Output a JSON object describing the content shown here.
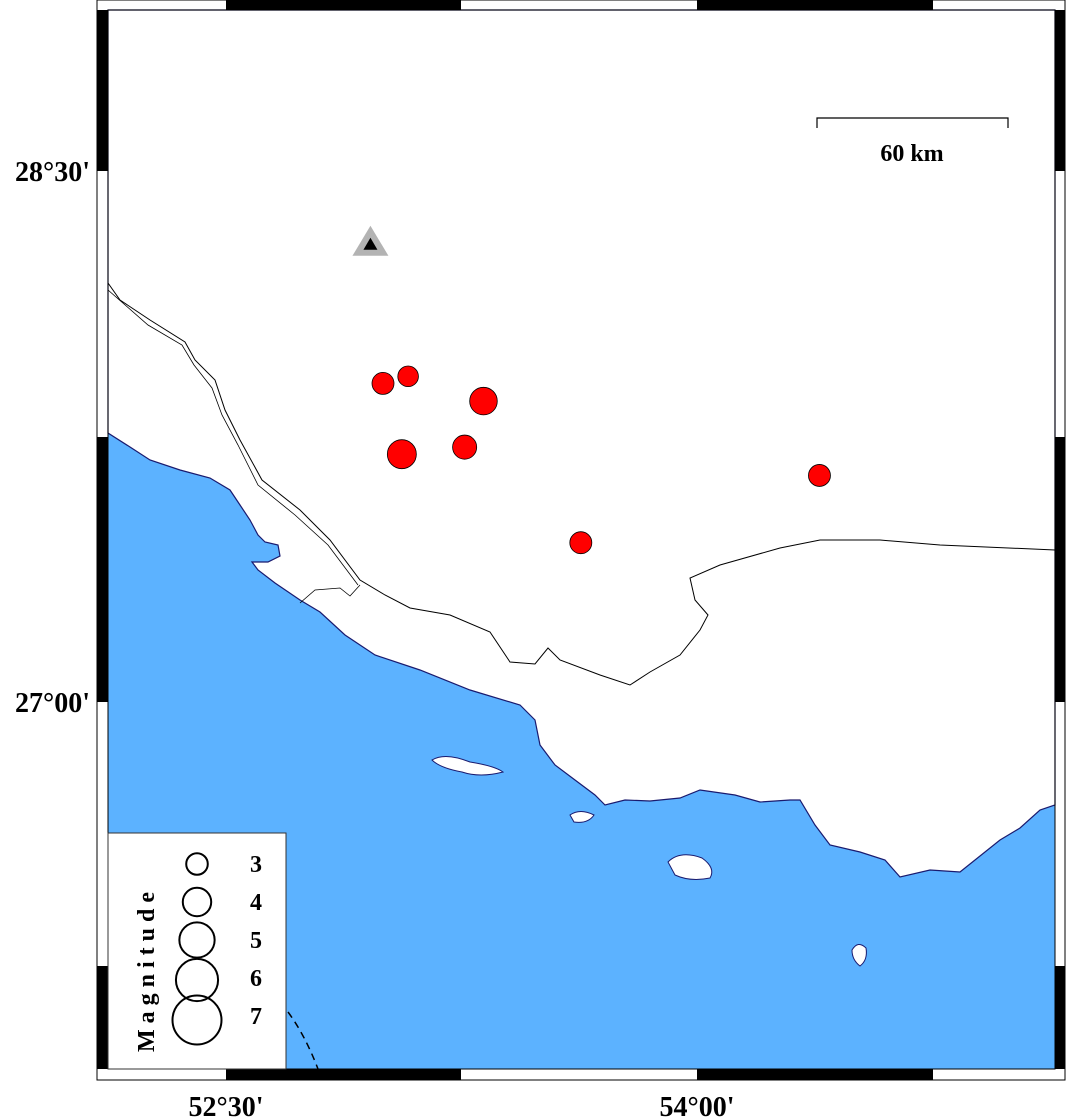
{
  "map": {
    "colors": {
      "sea": "#5cb2ff",
      "land": "#ffffff",
      "event": "#ff0000",
      "station_outer": "#b3b3b3",
      "station_inner": "#000000"
    },
    "lon_labels": [
      {
        "lon": 52.5,
        "text": "52°30'"
      },
      {
        "lon": 54.0,
        "text": "54°00'"
      }
    ],
    "lat_labels": [
      {
        "lat": 28.5,
        "text": "28°30'"
      },
      {
        "lat": 27.0,
        "text": "27°00'"
      }
    ],
    "scale_bar": {
      "label": "60 km"
    },
    "station": {
      "lon": 52.96,
      "lat": 28.3,
      "symbol": "triangle"
    },
    "events": [
      {
        "lon": 53.0,
        "lat": 27.9,
        "mag": 3.0
      },
      {
        "lon": 53.08,
        "lat": 27.92,
        "mag": 2.8
      },
      {
        "lon": 53.32,
        "lat": 27.85,
        "mag": 3.8
      },
      {
        "lon": 53.06,
        "lat": 27.7,
        "mag": 4.0
      },
      {
        "lon": 53.26,
        "lat": 27.72,
        "mag": 3.3
      },
      {
        "lon": 54.39,
        "lat": 27.64,
        "mag": 3.0
      },
      {
        "lon": 53.63,
        "lat": 27.45,
        "mag": 3.0
      }
    ],
    "legend": {
      "title": "Magnitude",
      "items": [
        {
          "mag": 3,
          "label": "3"
        },
        {
          "mag": 4,
          "label": "4"
        },
        {
          "mag": 5,
          "label": "5"
        },
        {
          "mag": 6,
          "label": "6"
        },
        {
          "mag": 7,
          "label": "7"
        }
      ]
    }
  }
}
